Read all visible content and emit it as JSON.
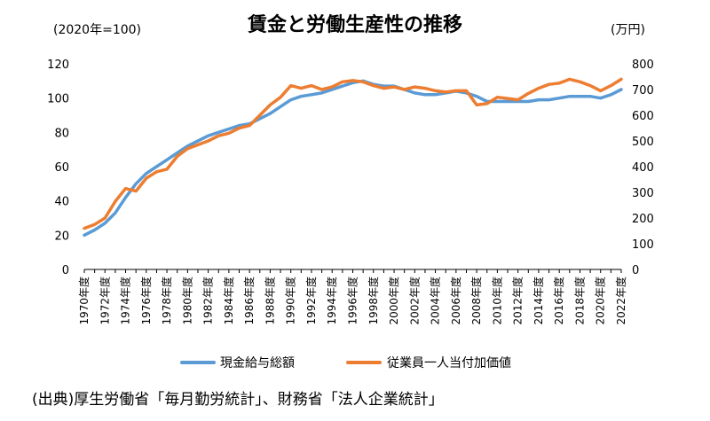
{
  "chart_data": {
    "type": "line",
    "title": "賃金と労働生産性の推移",
    "left_axis_unit": "(2020年=100)",
    "right_axis_unit": "(万円)",
    "source": "(出典)厚生労働省「毎月勤労統計」、財務省「法人企業統計」",
    "left_ylim": [
      0,
      120
    ],
    "right_ylim": [
      0,
      800
    ],
    "left_ticks": [
      "0",
      "20",
      "40",
      "60",
      "80",
      "100",
      "120"
    ],
    "right_ticks": [
      "0",
      "100",
      "200",
      "300",
      "400",
      "500",
      "600",
      "700",
      "800"
    ],
    "grid": false,
    "legend_position": "bottom",
    "x": [
      1970,
      1971,
      1972,
      1973,
      1974,
      1975,
      1976,
      1977,
      1978,
      1979,
      1980,
      1981,
      1982,
      1983,
      1984,
      1985,
      1986,
      1987,
      1988,
      1989,
      1990,
      1991,
      1992,
      1993,
      1994,
      1995,
      1996,
      1997,
      1998,
      1999,
      2000,
      2001,
      2002,
      2003,
      2004,
      2005,
      2006,
      2007,
      2008,
      2009,
      2010,
      2011,
      2012,
      2013,
      2014,
      2015,
      2016,
      2017,
      2018,
      2019,
      2020,
      2021,
      2022
    ],
    "x_tick_labels": [
      "1970年度",
      "1972年度",
      "1974年度",
      "1976年度",
      "1978年度",
      "1980年度",
      "1982年度",
      "1984年度",
      "1986年度",
      "1988年度",
      "1990年度",
      "1992年度",
      "1994年度",
      "1996年度",
      "1998年度",
      "2000年度",
      "2002年度",
      "2004年度",
      "2006年度",
      "2008年度",
      "2010年度",
      "2012年度",
      "2014年度",
      "2016年度",
      "2018年度",
      "2020年度",
      "2022年度"
    ],
    "series": [
      {
        "name": "現金給与総額",
        "axis": "left",
        "color": "#5B9BD5",
        "values": [
          20,
          23,
          27,
          33,
          42,
          50,
          56,
          60,
          64,
          68,
          72,
          75,
          78,
          80,
          82,
          84,
          85,
          88,
          91,
          95,
          99,
          101,
          102,
          103,
          105,
          107,
          109,
          110,
          108,
          107,
          107,
          105,
          103,
          102,
          102,
          103,
          104,
          103,
          101,
          98,
          98,
          98,
          98,
          98,
          99,
          99,
          100,
          101,
          101,
          101,
          100,
          102,
          105
        ]
      },
      {
        "name": "従業員一人当付加価値",
        "axis": "right",
        "color": "#ED7D31",
        "values": [
          160,
          175,
          200,
          265,
          315,
          305,
          355,
          380,
          390,
          440,
          470,
          485,
          500,
          520,
          530,
          550,
          560,
          600,
          640,
          670,
          715,
          705,
          715,
          700,
          710,
          730,
          735,
          730,
          715,
          705,
          710,
          700,
          710,
          705,
          695,
          690,
          695,
          695,
          640,
          645,
          670,
          665,
          660,
          685,
          705,
          720,
          725,
          740,
          730,
          715,
          695,
          715,
          740
        ]
      }
    ]
  }
}
